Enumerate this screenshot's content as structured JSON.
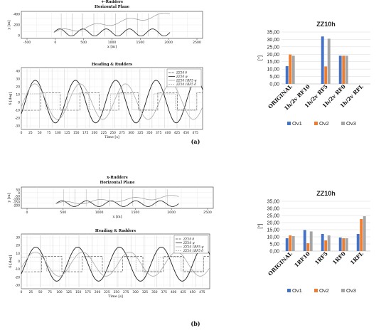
{
  "panels": [
    {
      "label": "(a)",
      "plane": {
        "title": "+-Rudders",
        "subtitle": "Horizontal Plane",
        "xlabel": "x [m]",
        "ylabel": "y [m]",
        "xticks": [
          "-500",
          "0",
          "500",
          "1000",
          "1500",
          "2000",
          "2500"
        ],
        "yticks": [
          "0",
          "-200",
          "-400"
        ]
      },
      "heading": {
        "title": "Heading & Rudders",
        "xlabel": "Time [s]",
        "ylabel": "δ [deg]",
        "xticks": [
          "0",
          "25",
          "50",
          "75",
          "100",
          "125",
          "150",
          "175",
          "200",
          "225",
          "250",
          "275",
          "300",
          "325",
          "350",
          "375",
          "400",
          "425",
          "450",
          "475"
        ],
        "yticks": [
          "40",
          "30",
          "20",
          "10",
          "0",
          "-10",
          "-20",
          "-30"
        ],
        "legend": [
          "ZZ10 δ",
          "ZZ10 ψ",
          "ZZ10 1RF5 ψ",
          "ZZ10 1RF5 δ"
        ]
      },
      "bar": {
        "type": "bar",
        "title": "ZZ10h",
        "ylabel": "[°]",
        "categories": [
          "ORIGINAL",
          "1h/2v RF10",
          "1h/2v RF5",
          "1h/2v RF0",
          "1h/2v RFL"
        ],
        "series": [
          {
            "name": "Ov1",
            "color": "#4472C4",
            "values": [
              12.0,
              0,
              32.0,
              19.0,
              0
            ]
          },
          {
            "name": "Ov2",
            "color": "#ED7D31",
            "values": [
              19.8,
              0,
              11.8,
              19.0,
              0
            ]
          },
          {
            "name": "Ov3",
            "color": "#A5A5A5",
            "values": [
              19.0,
              0,
              30.5,
              19.0,
              0
            ]
          }
        ],
        "yticks": [
          "0,00",
          "5,00",
          "10,00",
          "15,00",
          "20,00",
          "25,00",
          "30,00",
          "35,00"
        ],
        "ylim": [
          0,
          35
        ]
      }
    },
    {
      "label": "(b)",
      "plane": {
        "title": "x-Rudders",
        "subtitle": "Horizontal Plane",
        "xlabel": "x [m]",
        "ylabel": "y [m]",
        "xticks": [
          "0",
          "500",
          "1000",
          "1500",
          "2000",
          "2500"
        ],
        "yticks": [
          "-200",
          "-150",
          "-100",
          "-50",
          "0",
          "50"
        ]
      },
      "heading": {
        "title": "Heading & Rudders",
        "xlabel": "Time [s]",
        "ylabel": "δ [deg]",
        "xticks": [
          "0",
          "25",
          "50",
          "75",
          "100",
          "125",
          "150",
          "175",
          "200",
          "225",
          "250",
          "275",
          "300",
          "325",
          "350",
          "375",
          "400",
          "425",
          "450",
          "475"
        ],
        "yticks": [
          "30",
          "20",
          "10",
          "0",
          "-10",
          "-20",
          "-30"
        ],
        "legend": [
          "ZZ10 δ",
          "ZZ10 ψ",
          "ZZ10 1RF5 ψ",
          "ZZ10 1RF5 δ"
        ]
      },
      "bar": {
        "type": "bar",
        "title": "ZZ10h",
        "ylabel": "[°]",
        "categories": [
          "ORIGINAL",
          "1RF10",
          "1RF5",
          "1RF0",
          "1RFL"
        ],
        "series": [
          {
            "name": "Ov1",
            "color": "#4472C4",
            "values": [
              9.0,
              14.8,
              12.0,
              9.5,
              12.0
            ]
          },
          {
            "name": "Ov2",
            "color": "#ED7D31",
            "values": [
              11.0,
              5.5,
              7.5,
              9.0,
              22.5
            ]
          },
          {
            "name": "Ov3",
            "color": "#A5A5A5",
            "values": [
              10.5,
              13.8,
              11.0,
              9.0,
              24.5
            ]
          }
        ],
        "yticks": [
          "0,00",
          "5,00",
          "10,00",
          "15,00",
          "20,00",
          "25,00",
          "30,00",
          "35,00"
        ],
        "ylim": [
          0,
          35
        ]
      }
    }
  ]
}
